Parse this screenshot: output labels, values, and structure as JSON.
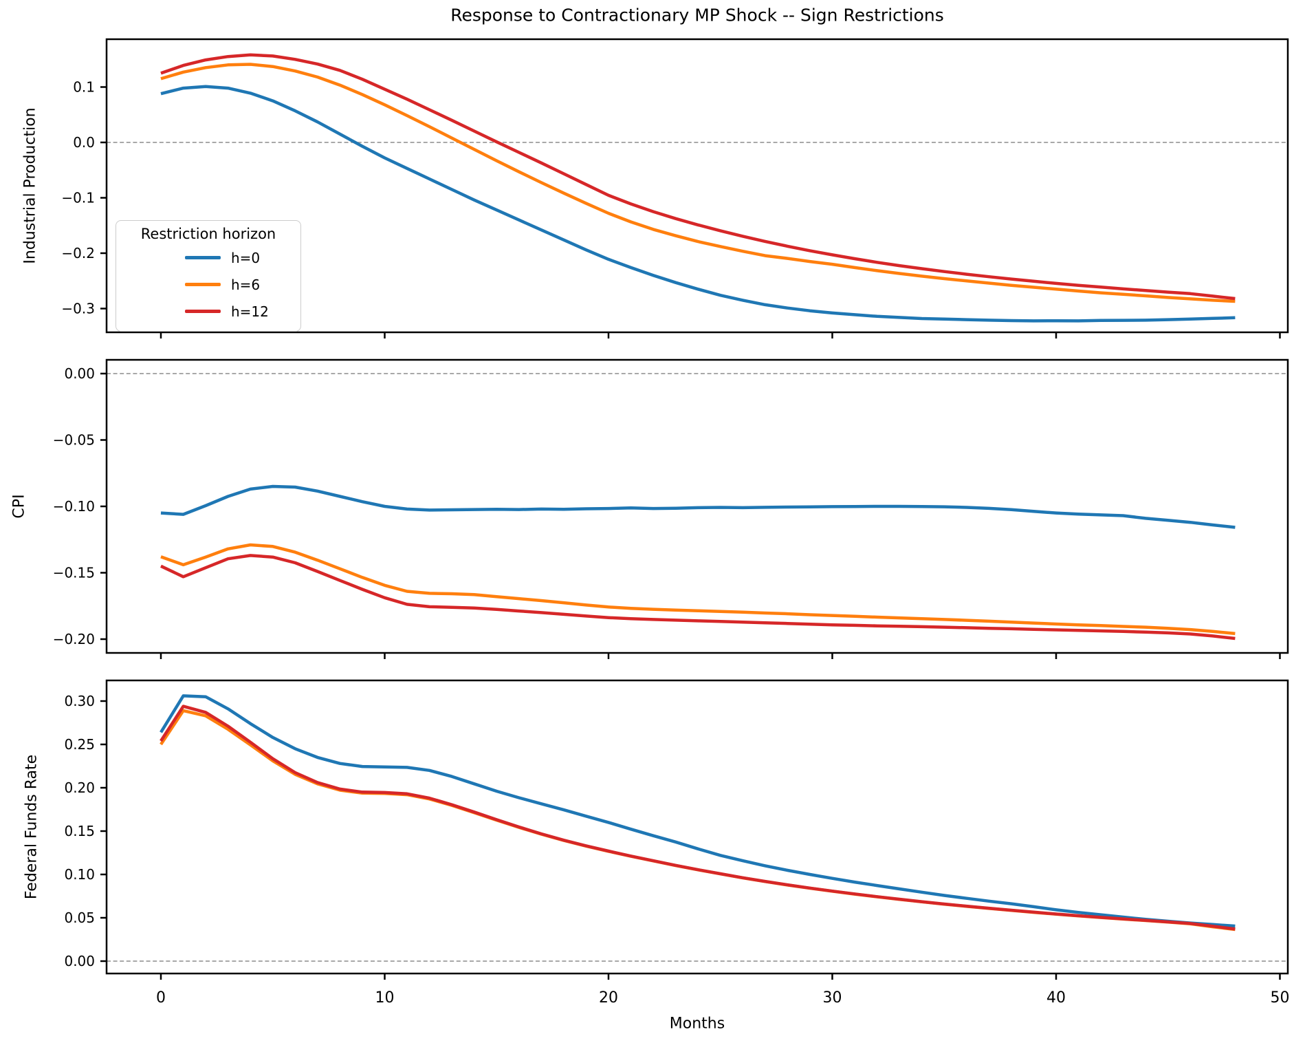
{
  "title": "Response to Contractionary MP Shock -- Sign Restrictions",
  "xlabel": "Months",
  "legend": {
    "title": "Restriction horizon",
    "entries": [
      {
        "label": "h=0",
        "color": "#1f77b4"
      },
      {
        "label": "h=6",
        "color": "#ff7f0e"
      },
      {
        "label": "h=12",
        "color": "#d62728"
      }
    ]
  },
  "style": {
    "background": "#ffffff",
    "axis_color": "#000000",
    "zero_line_color": "#8c8c8c",
    "blue": "#1f77b4",
    "orange": "#ff7f0e",
    "red": "#d62728"
  },
  "x_months": [
    0,
    1,
    2,
    3,
    4,
    5,
    6,
    7,
    8,
    9,
    10,
    11,
    12,
    13,
    14,
    15,
    16,
    17,
    18,
    19,
    20,
    21,
    22,
    23,
    24,
    25,
    26,
    27,
    28,
    29,
    30,
    31,
    32,
    33,
    34,
    35,
    36,
    37,
    38,
    39,
    40,
    41,
    42,
    43,
    44,
    45,
    46,
    47,
    48
  ],
  "x_ticks": [
    {
      "v": 0,
      "label": "0"
    },
    {
      "v": 10,
      "label": "10"
    },
    {
      "v": 20,
      "label": "20"
    },
    {
      "v": 30,
      "label": "30"
    },
    {
      "v": 40,
      "label": "40"
    },
    {
      "v": 50,
      "label": "50"
    }
  ],
  "xlim": [
    -2.46,
    50.4
  ],
  "chart_data": [
    {
      "type": "line",
      "ylabel": "Industrial Production",
      "ylim": [
        -0.343,
        0.186
      ],
      "zero_line": true,
      "grid": false,
      "legend_position": "center-left",
      "yticks": [
        {
          "v": 0.1,
          "label": "0.1"
        },
        {
          "v": 0.0,
          "label": "0.0"
        },
        {
          "v": -0.1,
          "label": "−0.1"
        },
        {
          "v": -0.2,
          "label": "−0.2"
        },
        {
          "v": -0.3,
          "label": "−0.3"
        }
      ],
      "series": [
        {
          "name": "h=0",
          "color": "#1f77b4",
          "values": [
            0.088,
            0.098,
            0.101,
            0.098,
            0.089,
            0.075,
            0.057,
            0.037,
            0.015,
            -0.007,
            -0.028,
            -0.047,
            -0.066,
            -0.085,
            -0.104,
            -0.122,
            -0.14,
            -0.158,
            -0.176,
            -0.194,
            -0.211,
            -0.226,
            -0.24,
            -0.253,
            -0.265,
            -0.276,
            -0.285,
            -0.293,
            -0.299,
            -0.304,
            -0.308,
            -0.311,
            -0.314,
            -0.316,
            -0.318,
            -0.319,
            -0.32,
            -0.321,
            -0.3218,
            -0.3222,
            -0.322,
            -0.3222,
            -0.3215,
            -0.3212,
            -0.321,
            -0.32,
            -0.319,
            -0.3178,
            -0.3165
          ]
        },
        {
          "name": "h=6",
          "color": "#ff7f0e",
          "values": [
            0.115,
            0.127,
            0.135,
            0.14,
            0.141,
            0.137,
            0.129,
            0.118,
            0.1035,
            0.0865,
            0.068,
            0.0485,
            0.0285,
            0.008,
            -0.0125,
            -0.033,
            -0.053,
            -0.0725,
            -0.0915,
            -0.11,
            -0.128,
            -0.1435,
            -0.157,
            -0.1685,
            -0.179,
            -0.188,
            -0.1965,
            -0.2045,
            -0.2095,
            -0.215,
            -0.22,
            -0.226,
            -0.2315,
            -0.2367,
            -0.2415,
            -0.246,
            -0.25,
            -0.254,
            -0.258,
            -0.2615,
            -0.265,
            -0.2683,
            -0.2715,
            -0.2743,
            -0.277,
            -0.28,
            -0.2825,
            -0.285,
            -0.287
          ]
        },
        {
          "name": "h=12",
          "color": "#d62728",
          "values": [
            0.125,
            0.139,
            0.149,
            0.155,
            0.158,
            0.156,
            0.15,
            0.1415,
            0.13,
            0.114,
            0.096,
            0.078,
            0.059,
            0.04,
            0.0205,
            0.001,
            -0.018,
            -0.037,
            -0.0565,
            -0.076,
            -0.0955,
            -0.111,
            -0.125,
            -0.1375,
            -0.149,
            -0.1595,
            -0.1695,
            -0.1788,
            -0.1875,
            -0.1955,
            -0.203,
            -0.21,
            -0.2165,
            -0.2225,
            -0.228,
            -0.2332,
            -0.238,
            -0.2425,
            -0.2467,
            -0.2507,
            -0.2545,
            -0.258,
            -0.2613,
            -0.2645,
            -0.2675,
            -0.2703,
            -0.273,
            -0.2775,
            -0.282
          ]
        }
      ]
    },
    {
      "type": "line",
      "ylabel": "CPI",
      "ylim": [
        -0.2104,
        0.0104
      ],
      "zero_line": true,
      "grid": false,
      "yticks": [
        {
          "v": 0.0,
          "label": "0.00"
        },
        {
          "v": -0.05,
          "label": "−0.05"
        },
        {
          "v": -0.1,
          "label": "−0.10"
        },
        {
          "v": -0.15,
          "label": "−0.15"
        },
        {
          "v": -0.2,
          "label": "−0.20"
        }
      ],
      "series": [
        {
          "name": "h=0",
          "color": "#1f77b4",
          "values": [
            -0.105,
            -0.106,
            -0.0995,
            -0.0925,
            -0.087,
            -0.085,
            -0.0855,
            -0.0885,
            -0.0925,
            -0.0965,
            -0.1,
            -0.102,
            -0.1028,
            -0.1026,
            -0.1024,
            -0.1022,
            -0.1024,
            -0.102,
            -0.1022,
            -0.1018,
            -0.1016,
            -0.1012,
            -0.1016,
            -0.1014,
            -0.101,
            -0.1008,
            -0.101,
            -0.1007,
            -0.1005,
            -0.1004,
            -0.1002,
            -0.1001,
            -0.1,
            -0.1,
            -0.1001,
            -0.1003,
            -0.1008,
            -0.1015,
            -0.1025,
            -0.1038,
            -0.105,
            -0.1058,
            -0.1064,
            -0.107,
            -0.109,
            -0.1105,
            -0.112,
            -0.114,
            -0.1158
          ]
        },
        {
          "name": "h=6",
          "color": "#ff7f0e",
          "values": [
            -0.138,
            -0.144,
            -0.1382,
            -0.132,
            -0.129,
            -0.1302,
            -0.1345,
            -0.1405,
            -0.147,
            -0.1535,
            -0.1595,
            -0.164,
            -0.1655,
            -0.1658,
            -0.1665,
            -0.168,
            -0.1695,
            -0.171,
            -0.1726,
            -0.1743,
            -0.1758,
            -0.1768,
            -0.1775,
            -0.1781,
            -0.1786,
            -0.1791,
            -0.1797,
            -0.1803,
            -0.1809,
            -0.1816,
            -0.1822,
            -0.1828,
            -0.1834,
            -0.184,
            -0.1846,
            -0.1852,
            -0.1858,
            -0.1865,
            -0.1872,
            -0.1879,
            -0.1886,
            -0.1892,
            -0.1898,
            -0.1904,
            -0.191,
            -0.1918,
            -0.1928,
            -0.1942,
            -0.1958
          ]
        },
        {
          "name": "h=12",
          "color": "#d62728",
          "values": [
            -0.145,
            -0.153,
            -0.1462,
            -0.1395,
            -0.137,
            -0.1382,
            -0.1425,
            -0.149,
            -0.1558,
            -0.1625,
            -0.1688,
            -0.1738,
            -0.1756,
            -0.176,
            -0.1766,
            -0.1776,
            -0.1788,
            -0.18,
            -0.1813,
            -0.1826,
            -0.1838,
            -0.1846,
            -0.1852,
            -0.1857,
            -0.1862,
            -0.1867,
            -0.1872,
            -0.1877,
            -0.1882,
            -0.1887,
            -0.1892,
            -0.1896,
            -0.19,
            -0.1903,
            -0.1906,
            -0.191,
            -0.1914,
            -0.1918,
            -0.1922,
            -0.1926,
            -0.193,
            -0.1934,
            -0.1938,
            -0.1942,
            -0.1947,
            -0.1953,
            -0.1961,
            -0.1976,
            -0.1995
          ]
        }
      ]
    },
    {
      "type": "line",
      "ylabel": "Federal Funds Rate",
      "ylim": [
        -0.0143,
        0.3238
      ],
      "zero_line": true,
      "grid": false,
      "yticks": [
        {
          "v": 0.3,
          "label": "0.30"
        },
        {
          "v": 0.25,
          "label": "0.25"
        },
        {
          "v": 0.2,
          "label": "0.20"
        },
        {
          "v": 0.15,
          "label": "0.15"
        },
        {
          "v": 0.1,
          "label": "0.10"
        },
        {
          "v": 0.05,
          "label": "0.05"
        },
        {
          "v": 0.0,
          "label": "0.00"
        }
      ],
      "series": [
        {
          "name": "h=0",
          "color": "#1f77b4",
          "values": [
            0.264,
            0.306,
            0.305,
            0.291,
            0.274,
            0.258,
            0.245,
            0.235,
            0.228,
            0.2245,
            0.224,
            0.2235,
            0.22,
            0.213,
            0.2045,
            0.196,
            0.1885,
            0.1815,
            0.1745,
            0.1672,
            0.16,
            0.1522,
            0.1447,
            0.1375,
            0.1295,
            0.122,
            0.1158,
            0.11,
            0.1048,
            0.1,
            0.0955,
            0.0912,
            0.0872,
            0.0833,
            0.0795,
            0.0758,
            0.0725,
            0.0692,
            0.0662,
            0.0628,
            0.0592,
            0.0562,
            0.0535,
            0.0508,
            0.0482,
            0.046,
            0.044,
            0.0422,
            0.0405
          ]
        },
        {
          "name": "h=6",
          "color": "#ff7f0e",
          "values": [
            0.25,
            0.289,
            0.283,
            0.2675,
            0.2495,
            0.231,
            0.2155,
            0.2045,
            0.1972,
            0.1938,
            0.1934,
            0.192,
            0.1871,
            0.1797,
            0.1713,
            0.1626,
            0.1543,
            0.1464,
            0.1392,
            0.1327,
            0.1267,
            0.121,
            0.1156,
            0.1103,
            0.1053,
            0.1006,
            0.096,
            0.0918,
            0.0878,
            0.0841,
            0.0806,
            0.0773,
            0.0742,
            0.0712,
            0.0684,
            0.0657,
            0.0632,
            0.0608,
            0.0585,
            0.0563,
            0.0542,
            0.0522,
            0.0503,
            0.0485,
            0.0468,
            0.045,
            0.043,
            0.0396,
            0.0365
          ]
        },
        {
          "name": "h=12",
          "color": "#d62728",
          "values": [
            0.254,
            0.294,
            0.287,
            0.271,
            0.2525,
            0.2335,
            0.2175,
            0.206,
            0.1985,
            0.195,
            0.1945,
            0.193,
            0.188,
            0.1805,
            0.172,
            0.1632,
            0.1548,
            0.1468,
            0.1395,
            0.133,
            0.127,
            0.1212,
            0.1158,
            0.1105,
            0.1055,
            0.1008,
            0.0962,
            0.092,
            0.088,
            0.0843,
            0.0808,
            0.0775,
            0.0744,
            0.0714,
            0.0686,
            0.0659,
            0.0634,
            0.061,
            0.0587,
            0.0565,
            0.0544,
            0.0524,
            0.0505,
            0.0487,
            0.047,
            0.0452,
            0.0434,
            0.0403,
            0.037
          ]
        }
      ]
    }
  ]
}
